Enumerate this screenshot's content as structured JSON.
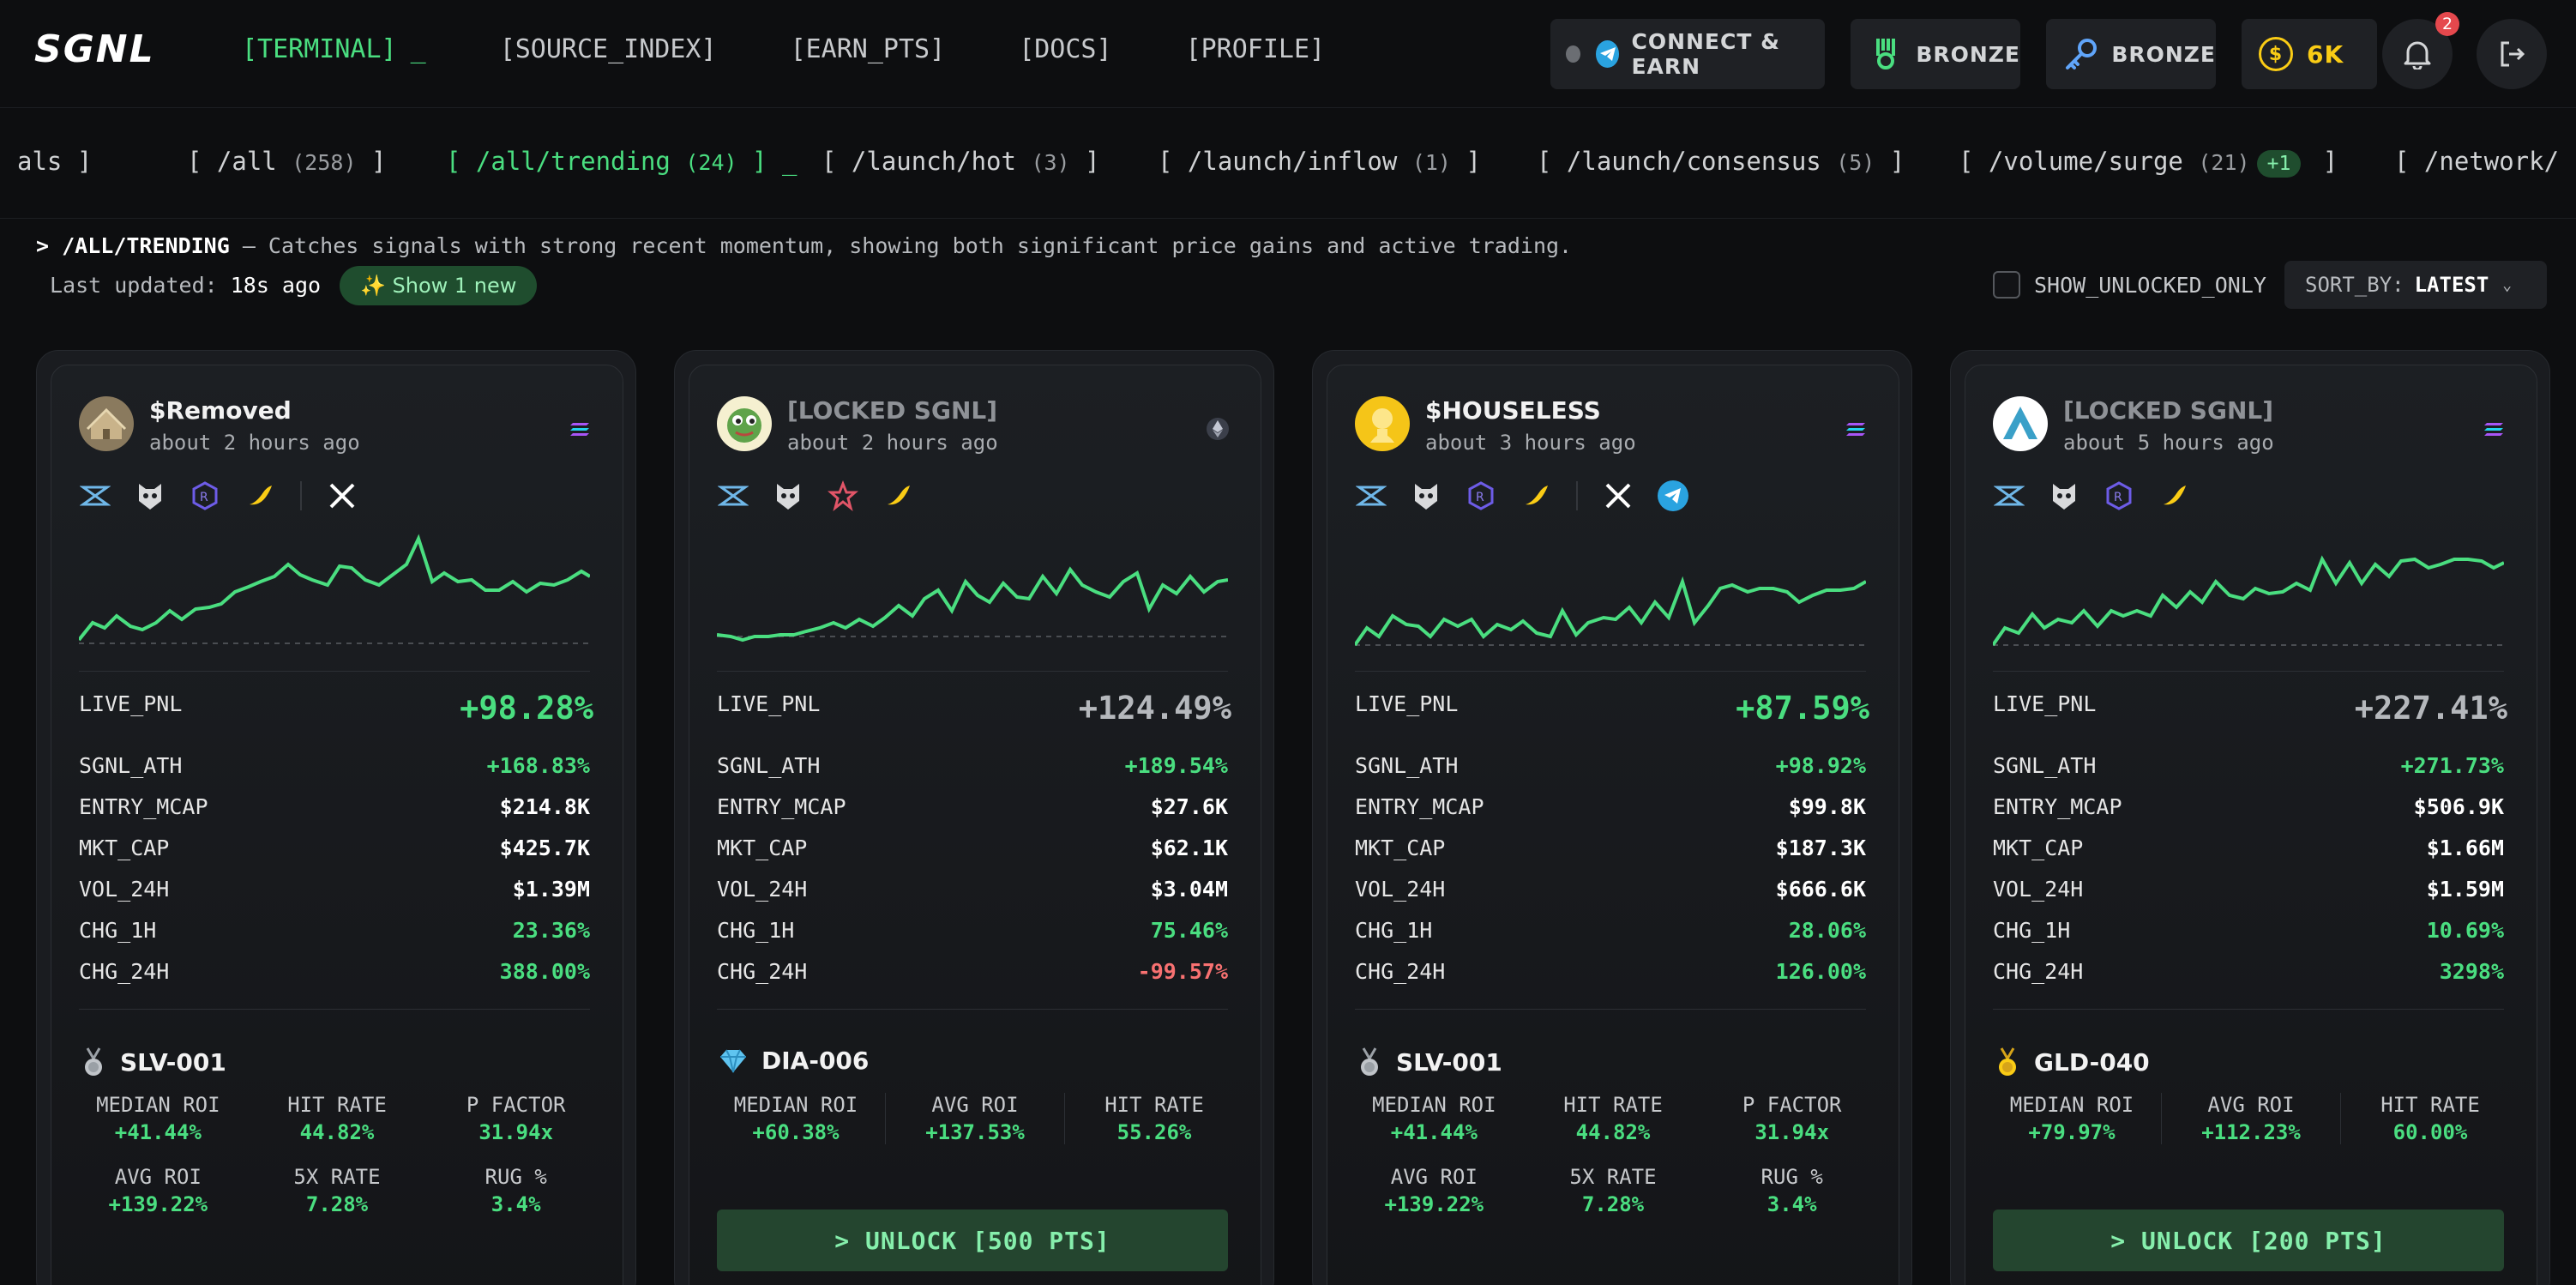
{
  "header": {
    "logo": "SGNL",
    "nav": [
      {
        "label": "[TERMINAL]",
        "cursor": "_"
      },
      {
        "label": "[SOURCE_INDEX]"
      },
      {
        "label": "[EARN_PTS]"
      },
      {
        "label": "[DOCS]"
      },
      {
        "label": "[PROFILE]"
      }
    ],
    "connect_label": "CONNECT & EARN",
    "rank1": "BRONZE",
    "rank2": "BRONZE",
    "points": "6K",
    "notif_count": "2"
  },
  "tabs": {
    "items": [
      {
        "open": "als ]",
        "label": "",
        "count": ""
      },
      {
        "open": "[ ",
        "label": "/all",
        "count": "(258)",
        "close": " ]"
      },
      {
        "open": "[ ",
        "label": "/all/trending",
        "count": "(24)",
        "close": " ] _"
      },
      {
        "open": "[ ",
        "label": "/launch/hot",
        "count": "(3)",
        "close": " ]"
      },
      {
        "open": "[ ",
        "label": "/launch/inflow",
        "count": "(1)",
        "close": " ]"
      },
      {
        "open": "[ ",
        "label": "/launch/consensus",
        "count": "(5)",
        "close": " ]"
      },
      {
        "open": "[ ",
        "label": "/volume/surge",
        "count": "(21)",
        "pill": "+1",
        "close": " ]"
      },
      {
        "open": "[ ",
        "label": "/network/",
        "count": "",
        "close": ""
      }
    ]
  },
  "info": {
    "prompt": "> ",
    "path": "/ALL/TRENDING",
    "description": " — Catches signals with strong recent momentum, showing both significant price gains and active trading.",
    "updated_label": "Last updated: ",
    "updated_value": "18s ago",
    "new_button": "✨ Show 1 new",
    "show_unlocked": "SHOW_UNLOCKED_ONLY",
    "sort_label": "SORT_BY:",
    "sort_value": "LATEST"
  },
  "metric_labels": {
    "live_pnl": "LIVE_PNL",
    "sgnl_ath": "SGNL_ATH",
    "entry_mcap": "ENTRY_MCAP",
    "mkt_cap": "MKT_CAP",
    "vol_24h": "VOL_24H",
    "chg_1h": "CHG_1H",
    "chg_24h": "CHG_24H"
  },
  "cards": [
    {
      "title": "$Removed",
      "time": "about 2 hours ago",
      "chain": "solana",
      "live_pnl": "+98.28%",
      "sgnl_ath": "+168.83%",
      "entry_mcap": "$214.8K",
      "mkt_cap": "$425.7K",
      "vol_24h": "$1.39M",
      "chg_1h": "23.36%",
      "chg_24h": "388.00%",
      "tier_icon": "silver-medal",
      "tier": "SLV-001",
      "stats_row1": [
        {
          "label": "MEDIAN ROI",
          "value": "+41.44%"
        },
        {
          "label": "HIT RATE",
          "value": "44.82%"
        },
        {
          "label": "P FACTOR",
          "value": "31.94x"
        }
      ],
      "stats_row2": [
        {
          "label": "AVG ROI",
          "value": "+139.22%"
        },
        {
          "label": "5X RATE",
          "value": "7.28%"
        },
        {
          "label": "RUG %",
          "value": "3.4%"
        }
      ]
    },
    {
      "title": "[LOCKED SGNL]",
      "time": "about 2 hours ago",
      "chain": "ethereum",
      "live_pnl": "+124.49%",
      "sgnl_ath": "+189.54%",
      "entry_mcap": "$27.6K",
      "mkt_cap": "$62.1K",
      "vol_24h": "$3.04M",
      "chg_1h": "75.46%",
      "chg_24h": "-99.57%",
      "tier_icon": "diamond",
      "tier": "DIA-006",
      "stats_row1": [
        {
          "label": "MEDIAN ROI",
          "value": "+60.38%"
        },
        {
          "label": "AVG ROI",
          "value": "+137.53%"
        },
        {
          "label": "HIT RATE",
          "value": "55.26%"
        }
      ],
      "unlock": "> UNLOCK [500 PTS]"
    },
    {
      "title": "$HOUSELESS",
      "time": "about 3 hours ago",
      "chain": "solana",
      "live_pnl": "+87.59%",
      "sgnl_ath": "+98.92%",
      "entry_mcap": "$99.8K",
      "mkt_cap": "$187.3K",
      "vol_24h": "$666.6K",
      "chg_1h": "28.06%",
      "chg_24h": "126.00%",
      "tier_icon": "silver-medal",
      "tier": "SLV-001",
      "stats_row1": [
        {
          "label": "MEDIAN ROI",
          "value": "+41.44%"
        },
        {
          "label": "HIT RATE",
          "value": "44.82%"
        },
        {
          "label": "P FACTOR",
          "value": "31.94x"
        }
      ],
      "stats_row2": [
        {
          "label": "AVG ROI",
          "value": "+139.22%"
        },
        {
          "label": "5X RATE",
          "value": "7.28%"
        },
        {
          "label": "RUG %",
          "value": "3.4%"
        }
      ]
    },
    {
      "title": "[LOCKED SGNL]",
      "time": "about 5 hours ago",
      "chain": "solana",
      "live_pnl": "+227.41%",
      "sgnl_ath": "+271.73%",
      "entry_mcap": "$506.9K",
      "mkt_cap": "$1.66M",
      "vol_24h": "$1.59M",
      "chg_1h": "10.69%",
      "chg_24h": "3298%",
      "tier_icon": "gold-medal",
      "tier": "GLD-040",
      "stats_row1": [
        {
          "label": "MEDIAN ROI",
          "value": "+79.97%"
        },
        {
          "label": "AVG ROI",
          "value": "+112.23%"
        },
        {
          "label": "HIT RATE",
          "value": "60.00%"
        }
      ],
      "unlock": "> UNLOCK [200 PTS]"
    }
  ],
  "colors": {
    "accent_green": "#4ade80",
    "negative_red": "#f87171",
    "background": "#0d0e10",
    "card": "#1c1f23"
  }
}
